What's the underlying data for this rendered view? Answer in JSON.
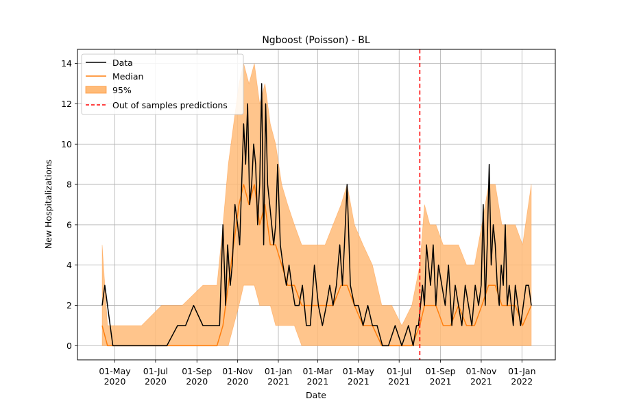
{
  "chart_data": {
    "type": "line",
    "title": "Ngboost (Poisson) - BL",
    "xlabel": "Date",
    "ylabel": "New Hospitalizations",
    "xlim": [
      "2020-03-06",
      "2022-02-20"
    ],
    "ylim": [
      -0.7,
      14.7
    ],
    "y_ticks": [
      0,
      2,
      4,
      6,
      8,
      10,
      12,
      14
    ],
    "x_ticks": [
      {
        "date": "2020-05-01",
        "label": "01-May\n2020"
      },
      {
        "date": "2020-07-01",
        "label": "01-Jul\n2020"
      },
      {
        "date": "2020-09-01",
        "label": "01-Sep\n2020"
      },
      {
        "date": "2020-11-01",
        "label": "01-Nov\n2020"
      },
      {
        "date": "2021-01-01",
        "label": "01-Jan\n2021"
      },
      {
        "date": "2021-03-01",
        "label": "01-Mar\n2021"
      },
      {
        "date": "2021-05-01",
        "label": "01-May\n2021"
      },
      {
        "date": "2021-07-01",
        "label": "01-Jul\n2021"
      },
      {
        "date": "2021-09-01",
        "label": "01-Sep\n2021"
      },
      {
        "date": "2021-11-01",
        "label": "01-Nov\n2021"
      },
      {
        "date": "2022-01-01",
        "label": "01-Jan\n2022"
      }
    ],
    "grid": true,
    "legend_position": "top-left",
    "legend": [
      "Data",
      "Median",
      "95%",
      "Out of samples predictions"
    ],
    "colors": {
      "data": "#000000",
      "median": "#ff7f0e",
      "band": "#ffbb78",
      "vline": "#ff0000"
    },
    "vline_date": "2021-08-01",
    "series": [
      {
        "name": "Data",
        "x": [
          "2020-04-12",
          "2020-04-16",
          "2020-04-20",
          "2020-04-28",
          "2020-05-15",
          "2020-05-31",
          "2020-06-20",
          "2020-06-27",
          "2020-07-10",
          "2020-07-18",
          "2020-08-03",
          "2020-08-15",
          "2020-08-27",
          "2020-09-10",
          "2020-09-25",
          "2020-10-05",
          "2020-10-10",
          "2020-10-14",
          "2020-10-17",
          "2020-10-21",
          "2020-10-24",
          "2020-10-28",
          "2020-11-01",
          "2020-11-04",
          "2020-11-07",
          "2020-11-10",
          "2020-11-13",
          "2020-11-16",
          "2020-11-19",
          "2020-11-22",
          "2020-11-25",
          "2020-11-28",
          "2020-12-01",
          "2020-12-04",
          "2020-12-07",
          "2020-12-10",
          "2020-12-13",
          "2020-12-16",
          "2020-12-19",
          "2020-12-22",
          "2020-12-25",
          "2020-12-28",
          "2020-12-31",
          "2021-01-04",
          "2021-01-08",
          "2021-01-13",
          "2021-01-17",
          "2021-01-21",
          "2021-01-26",
          "2021-02-01",
          "2021-02-06",
          "2021-02-12",
          "2021-02-18",
          "2021-02-24",
          "2021-03-02",
          "2021-03-08",
          "2021-03-14",
          "2021-03-19",
          "2021-03-24",
          "2021-03-29",
          "2021-04-03",
          "2021-04-07",
          "2021-04-10",
          "2021-04-14",
          "2021-04-19",
          "2021-04-25",
          "2021-05-01",
          "2021-05-08",
          "2021-05-15",
          "2021-05-22",
          "2021-05-29",
          "2021-06-06",
          "2021-06-15",
          "2021-06-25",
          "2021-07-05",
          "2021-07-15",
          "2021-07-22",
          "2021-07-27",
          "2021-07-30",
          "2021-08-02",
          "2021-08-05",
          "2021-08-08",
          "2021-08-11",
          "2021-08-14",
          "2021-08-17",
          "2021-08-21",
          "2021-08-25",
          "2021-08-29",
          "2021-09-03",
          "2021-09-08",
          "2021-09-13",
          "2021-09-18",
          "2021-09-23",
          "2021-09-28",
          "2021-10-03",
          "2021-10-08",
          "2021-10-13",
          "2021-10-18",
          "2021-10-23",
          "2021-10-28",
          "2021-11-01",
          "2021-11-04",
          "2021-11-07",
          "2021-11-10",
          "2021-11-13",
          "2021-11-16",
          "2021-11-19",
          "2021-11-22",
          "2021-11-25",
          "2021-11-28",
          "2021-12-01",
          "2021-12-04",
          "2021-12-07",
          "2021-12-10",
          "2021-12-13",
          "2021-12-16",
          "2021-12-19",
          "2021-12-22",
          "2021-12-26",
          "2021-12-30",
          "2022-01-03",
          "2022-01-07",
          "2022-01-11",
          "2022-01-15"
        ],
        "values": [
          2,
          3,
          2,
          0,
          0,
          0,
          0,
          0,
          0,
          0,
          1,
          1,
          2,
          1,
          1,
          1,
          6,
          2,
          5,
          3,
          4,
          7,
          6,
          5,
          8,
          11,
          9,
          12,
          7,
          8,
          10,
          9,
          6,
          8,
          13,
          5,
          12,
          8,
          7,
          6,
          5,
          6,
          9,
          5,
          4,
          3,
          4,
          3,
          2,
          2,
          3,
          1,
          1,
          4,
          2,
          1,
          2,
          3,
          2,
          3,
          5,
          3,
          5,
          8,
          3,
          2,
          2,
          1,
          2,
          1,
          1,
          0,
          0,
          1,
          0,
          1,
          0,
          1,
          1,
          2,
          3,
          2,
          5,
          4,
          3,
          5,
          2,
          4,
          3,
          2,
          4,
          1,
          3,
          2,
          1,
          3,
          2,
          1,
          3,
          2,
          3,
          7,
          2,
          5,
          9,
          4,
          6,
          5,
          3,
          2,
          4,
          3,
          6,
          2,
          3,
          2,
          1,
          3,
          2,
          1,
          2,
          3,
          3,
          2
        ]
      },
      {
        "name": "Median",
        "x": [
          "2020-04-12",
          "2020-04-20",
          "2020-05-10",
          "2020-06-10",
          "2020-07-10",
          "2020-08-10",
          "2020-09-10",
          "2020-10-01",
          "2020-10-10",
          "2020-10-18",
          "2020-10-26",
          "2020-11-03",
          "2020-11-10",
          "2020-11-18",
          "2020-11-26",
          "2020-12-04",
          "2020-12-12",
          "2020-12-20",
          "2020-12-28",
          "2021-01-06",
          "2021-01-15",
          "2021-01-25",
          "2021-02-05",
          "2021-02-18",
          "2021-03-01",
          "2021-03-12",
          "2021-03-24",
          "2021-04-05",
          "2021-04-14",
          "2021-04-25",
          "2021-05-08",
          "2021-05-22",
          "2021-06-05",
          "2021-06-20",
          "2021-07-05",
          "2021-07-20",
          "2021-08-01",
          "2021-08-08",
          "2021-08-16",
          "2021-08-25",
          "2021-09-05",
          "2021-09-16",
          "2021-09-28",
          "2021-10-10",
          "2021-10-22",
          "2021-11-02",
          "2021-11-12",
          "2021-11-22",
          "2021-12-02",
          "2021-12-12",
          "2021-12-22",
          "2022-01-02",
          "2022-01-15"
        ],
        "values": [
          1,
          0,
          0,
          0,
          0,
          0,
          0,
          0,
          1,
          3,
          5,
          7,
          8,
          7,
          8,
          6,
          7,
          5,
          5,
          4,
          3,
          3,
          2,
          2,
          2,
          2,
          2,
          3,
          3,
          2,
          1,
          1,
          0,
          0,
          0,
          0,
          1,
          2,
          2,
          2,
          1,
          1,
          2,
          1,
          1,
          2,
          3,
          3,
          2,
          2,
          2,
          1,
          2
        ]
      }
    ],
    "band": {
      "name": "95%",
      "x": [
        "2020-04-12",
        "2020-04-20",
        "2020-05-10",
        "2020-06-10",
        "2020-07-10",
        "2020-08-10",
        "2020-09-10",
        "2020-10-01",
        "2020-10-10",
        "2020-10-18",
        "2020-10-26",
        "2020-11-03",
        "2020-11-10",
        "2020-11-18",
        "2020-11-26",
        "2020-12-04",
        "2020-12-12",
        "2020-12-20",
        "2020-12-28",
        "2021-01-06",
        "2021-01-15",
        "2021-01-25",
        "2021-02-05",
        "2021-02-18",
        "2021-03-01",
        "2021-03-12",
        "2021-03-24",
        "2021-04-05",
        "2021-04-14",
        "2021-04-25",
        "2021-05-08",
        "2021-05-22",
        "2021-06-05",
        "2021-06-20",
        "2021-07-05",
        "2021-07-20",
        "2021-08-01",
        "2021-08-08",
        "2021-08-16",
        "2021-08-25",
        "2021-09-05",
        "2021-09-16",
        "2021-09-28",
        "2021-10-10",
        "2021-10-22",
        "2021-11-02",
        "2021-11-12",
        "2021-11-22",
        "2021-12-02",
        "2021-12-12",
        "2021-12-22",
        "2022-01-02",
        "2022-01-15"
      ],
      "lower": [
        0,
        0,
        0,
        0,
        0,
        0,
        0,
        0,
        0,
        0,
        1,
        2,
        3,
        3,
        3,
        2,
        2,
        2,
        1,
        1,
        1,
        1,
        0,
        0,
        0,
        0,
        0,
        0,
        0,
        0,
        0,
        0,
        0,
        0,
        0,
        0,
        0,
        0,
        0,
        0,
        0,
        0,
        0,
        0,
        0,
        0,
        0,
        0,
        0,
        0,
        0,
        0,
        0
      ],
      "upper": [
        5,
        1,
        1,
        1,
        2,
        2,
        3,
        3,
        6,
        9,
        11,
        13,
        14,
        13,
        14,
        12,
        13,
        11,
        10,
        8,
        7,
        6,
        5,
        5,
        5,
        5,
        6,
        7,
        8,
        6,
        5,
        4,
        2,
        2,
        1,
        2,
        4,
        7,
        6,
        6,
        5,
        5,
        5,
        4,
        4,
        6,
        8,
        8,
        6,
        6,
        6,
        5,
        8
      ]
    }
  }
}
